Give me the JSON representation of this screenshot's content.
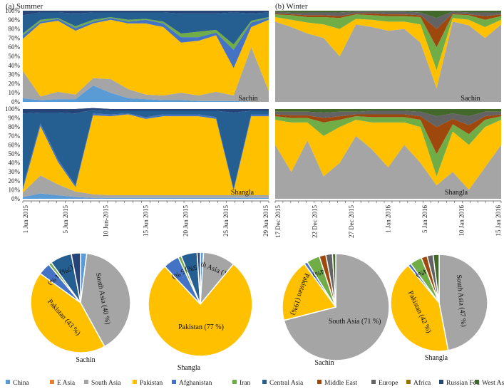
{
  "colors": {
    "china": "#5B9BD5",
    "e_asia": "#ED7D31",
    "south_asia": "#A5A5A5",
    "pakistan": "#FFC000",
    "afghanistan": "#4472C4",
    "iran": "#70AD47",
    "central_asia": "#255E91",
    "middle_east": "#9E480E",
    "europe": "#636363",
    "africa": "#997300",
    "russian_fed": "#264478",
    "west_asia": "#43682B"
  },
  "panels": {
    "summer_title": "(a) Summer",
    "winter_title": "(b) Winter",
    "sachin": "Sachin",
    "shangla": "Shangla"
  },
  "y_ticks": [
    "0%",
    "10%",
    "20%",
    "30%",
    "40%",
    "50%",
    "60%",
    "70%",
    "80%",
    "90%",
    "100%"
  ],
  "summer_dates": [
    "1 Jun 2015",
    "5 Jun 2015",
    "10 Jun-2015",
    "15 Jun 2015",
    "20 Jun 2015",
    "25 Jun 2015",
    "29 Jun 2015"
  ],
  "winter_dates": [
    "17 Dec 2015",
    "22 Dec 2015",
    "27 Dec 2015",
    "1 Jan 2016",
    "5 Jan 2016",
    "10 Jan 2016",
    "15 Jan 2016"
  ],
  "chart_data": [
    {
      "type": "area",
      "title": "(a) Summer",
      "site": "Sachin",
      "stacked": "100%",
      "x_ticks": [
        "1 Jun 2015",
        "5 Jun 2015",
        "10 Jun-2015",
        "15 Jun 2015",
        "20 Jun 2015",
        "25 Jun 2015",
        "29 Jun 2015"
      ],
      "ylim": [
        0,
        100
      ],
      "series_order": [
        "China",
        "South Asia",
        "Pakistan",
        "Afghanistan",
        "Iran",
        "Central Asia",
        "Russian Fed"
      ],
      "x": [
        0,
        2,
        4,
        6,
        8,
        10,
        12,
        14,
        16,
        18,
        20,
        22,
        24,
        26,
        28
      ],
      "series": [
        {
          "name": "China",
          "values": [
            4,
            2,
            3,
            3,
            18,
            10,
            4,
            3,
            2,
            2,
            1,
            1,
            1,
            0,
            0
          ]
        },
        {
          "name": "South Asia",
          "values": [
            30,
            4,
            8,
            5,
            8,
            15,
            10,
            5,
            5,
            8,
            6,
            10,
            6,
            60,
            12
          ]
        },
        {
          "name": "Pakistan",
          "values": [
            35,
            80,
            78,
            70,
            60,
            65,
            72,
            78,
            75,
            55,
            60,
            62,
            30,
            22,
            78
          ]
        },
        {
          "name": "Afghanistan",
          "values": [
            4,
            2,
            2,
            3,
            2,
            2,
            2,
            4,
            4,
            6,
            4,
            3,
            20,
            5,
            2
          ]
        },
        {
          "name": "Iran",
          "values": [
            2,
            2,
            1,
            2,
            2,
            1,
            2,
            1,
            2,
            4,
            6,
            3,
            6,
            2,
            1
          ]
        },
        {
          "name": "Central Asia",
          "values": [
            20,
            8,
            6,
            14,
            8,
            5,
            8,
            7,
            10,
            22,
            20,
            18,
            35,
            8,
            5
          ]
        },
        {
          "name": "Russian Fed",
          "values": [
            5,
            2,
            2,
            3,
            2,
            2,
            2,
            2,
            2,
            3,
            3,
            3,
            2,
            3,
            2
          ]
        }
      ]
    },
    {
      "type": "area",
      "title": "(b) Winter",
      "site": "Sachin",
      "stacked": "100%",
      "x_ticks": [
        "17 Dec 2015",
        "22 Dec 2015",
        "27 Dec 2015",
        "1 Jan 2016",
        "5 Jan 2016",
        "10 Jan 2016",
        "15 Jan 2016"
      ],
      "ylim": [
        0,
        100
      ],
      "series_order": [
        "South Asia",
        "Pakistan",
        "Iran",
        "Middle East",
        "Europe",
        "West Asia"
      ],
      "x": [
        0,
        2,
        4,
        6,
        8,
        10,
        12,
        14,
        16,
        18,
        20,
        22,
        24,
        26,
        28
      ],
      "series": [
        {
          "name": "South Asia",
          "values": [
            88,
            82,
            75,
            70,
            50,
            85,
            82,
            78,
            80,
            65,
            15,
            88,
            84,
            70,
            85
          ]
        },
        {
          "name": "Pakistan",
          "values": [
            5,
            8,
            12,
            15,
            30,
            6,
            8,
            10,
            8,
            20,
            20,
            4,
            6,
            12,
            5
          ]
        },
        {
          "name": "Iran",
          "values": [
            3,
            5,
            6,
            8,
            12,
            5,
            5,
            6,
            6,
            8,
            25,
            4,
            5,
            8,
            4
          ]
        },
        {
          "name": "Middle East",
          "values": [
            1,
            1,
            2,
            2,
            2,
            1,
            2,
            2,
            2,
            2,
            20,
            1,
            1,
            4,
            2
          ]
        },
        {
          "name": "Europe",
          "values": [
            2,
            2,
            3,
            3,
            4,
            2,
            2,
            3,
            3,
            3,
            12,
            2,
            2,
            4,
            2
          ]
        },
        {
          "name": "West Asia",
          "values": [
            1,
            2,
            2,
            2,
            2,
            1,
            1,
            1,
            1,
            2,
            8,
            1,
            2,
            2,
            2
          ]
        }
      ]
    },
    {
      "type": "area",
      "title": "(a) Summer",
      "site": "Shangla",
      "stacked": "100%",
      "x_ticks": [
        "1 Jun 2015",
        "5 Jun 2015",
        "10 Jun-2015",
        "15 Jun 2015",
        "20 Jun 2015",
        "25 Jun 2015",
        "29 Jun 2015"
      ],
      "ylim": [
        0,
        100
      ],
      "series_order": [
        "China",
        "South Asia",
        "Pakistan",
        "Afghanistan",
        "Central Asia",
        "Russian Fed"
      ],
      "x": [
        0,
        2,
        4,
        6,
        8,
        10,
        12,
        14,
        16,
        18,
        20,
        22,
        24,
        26,
        28
      ],
      "series": [
        {
          "name": "China",
          "values": [
            2,
            6,
            4,
            2,
            1,
            1,
            1,
            1,
            1,
            1,
            1,
            1,
            1,
            1,
            1
          ]
        },
        {
          "name": "South Asia",
          "values": [
            5,
            20,
            12,
            6,
            4,
            3,
            3,
            3,
            3,
            3,
            3,
            3,
            3,
            3,
            3
          ]
        },
        {
          "name": "Pakistan",
          "values": [
            3,
            55,
            25,
            5,
            88,
            88,
            90,
            85,
            88,
            88,
            88,
            85,
            5,
            88,
            88
          ]
        },
        {
          "name": "Afghanistan",
          "values": [
            3,
            3,
            3,
            2,
            2,
            2,
            1,
            2,
            2,
            2,
            2,
            2,
            2,
            2,
            2
          ]
        },
        {
          "name": "Central Asia",
          "values": [
            82,
            12,
            52,
            80,
            4,
            4,
            3,
            7,
            4,
            4,
            4,
            7,
            85,
            4,
            4
          ]
        },
        {
          "name": "Russian Fed",
          "values": [
            5,
            4,
            4,
            5,
            2,
            2,
            2,
            2,
            2,
            2,
            2,
            2,
            4,
            2,
            2
          ]
        }
      ]
    },
    {
      "type": "area",
      "title": "(b) Winter",
      "site": "Shangla",
      "stacked": "100%",
      "x_ticks": [
        "17 Dec 2015",
        "22 Dec 2015",
        "27 Dec 2015",
        "1 Jan 2016",
        "5 Jan 2016",
        "10 Jan 2016",
        "15 Jan 2016"
      ],
      "ylim": [
        0,
        100
      ],
      "series_order": [
        "South Asia",
        "Pakistan",
        "Iran",
        "Middle East",
        "Europe",
        "West Asia"
      ],
      "x": [
        0,
        2,
        4,
        6,
        8,
        10,
        12,
        14,
        16,
        18,
        20,
        22,
        24,
        26,
        28
      ],
      "series": [
        {
          "name": "South Asia",
          "values": [
            60,
            30,
            65,
            25,
            40,
            70,
            55,
            35,
            60,
            40,
            15,
            30,
            10,
            35,
            60
          ]
        },
        {
          "name": "Pakistan",
          "values": [
            28,
            55,
            20,
            45,
            40,
            18,
            30,
            50,
            25,
            40,
            10,
            45,
            50,
            45,
            28
          ]
        },
        {
          "name": "Iran",
          "values": [
            4,
            5,
            5,
            15,
            8,
            4,
            6,
            6,
            6,
            8,
            25,
            8,
            12,
            8,
            4
          ]
        },
        {
          "name": "Middle East",
          "values": [
            2,
            3,
            3,
            5,
            4,
            2,
            3,
            3,
            3,
            4,
            30,
            6,
            10,
            4,
            2
          ]
        },
        {
          "name": "Europe",
          "values": [
            3,
            4,
            4,
            6,
            5,
            3,
            4,
            4,
            4,
            5,
            12,
            6,
            10,
            5,
            3
          ]
        },
        {
          "name": "West Asia",
          "values": [
            3,
            3,
            3,
            4,
            3,
            3,
            2,
            2,
            2,
            3,
            8,
            5,
            8,
            3,
            3
          ]
        }
      ]
    },
    {
      "type": "pie",
      "site": "Sachin",
      "season": "Summer",
      "categories": [
        "China",
        "South Asia",
        "Pakistan",
        "Afghanistan",
        "Iran",
        "Central Asia",
        "Russian Fed"
      ],
      "values": [
        2,
        40,
        43,
        4,
        1,
        7,
        3
      ],
      "labels": [
        "",
        "South Asia (40 %)",
        "Pakistan (43 %)",
        "(4 %)",
        "",
        "(7%)",
        ""
      ]
    },
    {
      "type": "pie",
      "site": "Shangla",
      "season": "Summer",
      "categories": [
        "China",
        "South Asia",
        "Pakistan",
        "Afghanistan",
        "Iran",
        "Central Asia",
        "Russian Fed"
      ],
      "values": [
        1,
        10,
        77,
        5,
        1,
        5,
        1
      ],
      "labels": [
        "",
        "South Asia (10%)",
        "Pakistan (77 %)",
        "(5 %)",
        "",
        "(5%)",
        ""
      ]
    },
    {
      "type": "pie",
      "site": "Sachin",
      "season": "Winter",
      "categories": [
        "South Asia",
        "Pakistan",
        "Afghanistan",
        "Iran",
        "Middle East",
        "Europe",
        "West Asia"
      ],
      "values": [
        71,
        19,
        1,
        4,
        2,
        2,
        1
      ],
      "labels": [
        "South Asia (71 %)",
        "Pakistan (19%)",
        "",
        "(4%)",
        "",
        "",
        ""
      ]
    },
    {
      "type": "pie",
      "site": "Shangla",
      "season": "Winter",
      "categories": [
        "South Asia",
        "Pakistan",
        "Afghanistan",
        "Iran",
        "Middle East",
        "Europe",
        "West Asia"
      ],
      "values": [
        47,
        42,
        1,
        4,
        2,
        2,
        2
      ],
      "labels": [
        "South Asia (47 %)",
        "Pakistan (42 %)",
        "",
        "(4%)",
        "",
        "",
        ""
      ]
    }
  ],
  "legend": [
    {
      "name": "China",
      "key": "china"
    },
    {
      "name": "E Asia",
      "key": "e_asia"
    },
    {
      "name": "South Asia",
      "key": "south_asia"
    },
    {
      "name": "Pakistan",
      "key": "pakistan"
    },
    {
      "name": "Afghanistan",
      "key": "afghanistan"
    },
    {
      "name": "Iran",
      "key": "iran"
    },
    {
      "name": "Central Asia",
      "key": "central_asia"
    },
    {
      "name": "Middle East",
      "key": "middle_east"
    },
    {
      "name": "Europe",
      "key": "europe"
    },
    {
      "name": "Africa",
      "key": "africa"
    },
    {
      "name": "Russian Fed",
      "key": "russian_fed"
    },
    {
      "name": "West Asia",
      "key": "west_asia"
    }
  ]
}
